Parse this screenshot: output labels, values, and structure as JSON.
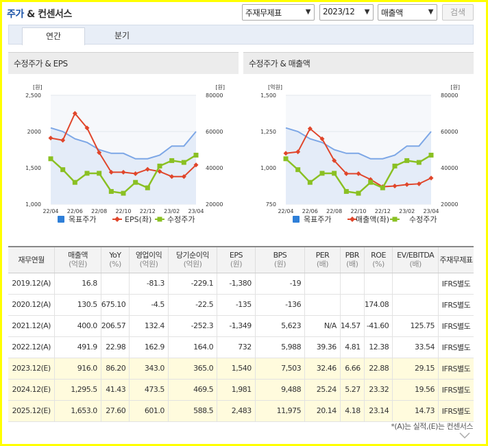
{
  "header": {
    "title_prefix": "주가",
    "title_suffix": " & 컨센서스",
    "select_type": "주재무제표",
    "select_period": "2023/12",
    "select_metric": "매출액",
    "search_label": "검색"
  },
  "tabs": [
    {
      "label": "연간"
    },
    {
      "label": "분기"
    }
  ],
  "panels": {
    "left_title": "수정주가 & EPS",
    "right_title": "수정주가 & 매출액"
  },
  "chart_data": [
    {
      "type": "line",
      "title": "수정주가 & EPS",
      "x": [
        "22/04",
        "22/05",
        "22/06",
        "22/07",
        "22/08",
        "22/09",
        "22/10",
        "22/11",
        "22/12",
        "23/01",
        "23/02",
        "23/03",
        "23/04"
      ],
      "x_ticks": [
        "22/04",
        "22/06",
        "22/08",
        "22/10",
        "22/12",
        "23/02",
        "23/04"
      ],
      "left_axis": {
        "unit": "[원]",
        "ylim": [
          1000,
          2500
        ],
        "ticks": [
          "1,000",
          "1,500",
          "2000",
          "2,500"
        ]
      },
      "right_axis": {
        "unit": "[원]",
        "ylim": [
          20000,
          80000
        ],
        "ticks": [
          "20000",
          "40000",
          "60000",
          "80000"
        ]
      },
      "series": [
        {
          "name": "목표주가",
          "axis": "right",
          "color": "#7da7e6",
          "values": [
            62000,
            60000,
            56000,
            54000,
            50000,
            48000,
            48000,
            45000,
            45000,
            47000,
            52000,
            52000,
            60000
          ]
        },
        {
          "name": "EPS(좌)",
          "axis": "left",
          "color": "#e0462b",
          "values": [
            1910,
            1880,
            2250,
            2050,
            1710,
            1440,
            1440,
            1420,
            1480,
            1450,
            1380,
            1380,
            1540
          ]
        },
        {
          "name": "수정주가",
          "axis": "right",
          "color": "#8ac023",
          "values": [
            45000,
            39000,
            32000,
            37000,
            37000,
            27000,
            26000,
            32000,
            29000,
            41000,
            44000,
            43000,
            47000
          ]
        }
      ],
      "legend": "bottom"
    },
    {
      "type": "line",
      "title": "수정주가 & 매출액",
      "x": [
        "22/04",
        "22/05",
        "22/06",
        "22/07",
        "22/08",
        "22/09",
        "22/10",
        "22/11",
        "22/12",
        "23/01",
        "23/02",
        "23/03",
        "23/04"
      ],
      "x_ticks": [
        "22/04",
        "22/06",
        "22/08",
        "22/10",
        "22/12",
        "23/02",
        "23/04"
      ],
      "left_axis": {
        "unit": "[억원]",
        "ylim": [
          750,
          1500
        ],
        "ticks": [
          "750",
          "1,000",
          "1,250",
          "1,500"
        ]
      },
      "right_axis": {
        "unit": "[원]",
        "ylim": [
          20000,
          80000
        ],
        "ticks": [
          "20000",
          "40000",
          "60000",
          "80000"
        ]
      },
      "series": [
        {
          "name": "목표주가",
          "axis": "right",
          "color": "#7da7e6",
          "values": [
            62000,
            60000,
            56000,
            54000,
            50000,
            48000,
            48000,
            45000,
            45000,
            47000,
            52000,
            52000,
            60000
          ]
        },
        {
          "name": "매출액(좌)",
          "axis": "left",
          "color": "#e0462b",
          "values": [
            1100,
            1110,
            1270,
            1200,
            1050,
            960,
            960,
            920,
            870,
            875,
            885,
            890,
            930
          ]
        },
        {
          "name": "수정주가",
          "axis": "right",
          "color": "#8ac023",
          "values": [
            45000,
            39000,
            32000,
            37000,
            37000,
            27000,
            26000,
            32000,
            29000,
            41000,
            44000,
            43000,
            47000
          ]
        }
      ],
      "legend": "bottom"
    },
    {
      "type": "table",
      "columns": [
        {
          "label": "재무연월",
          "sub": ""
        },
        {
          "label": "매출액",
          "sub": "(억원)"
        },
        {
          "label": "YoY",
          "sub": "(%)"
        },
        {
          "label": "영업이익",
          "sub": "(억원)"
        },
        {
          "label": "당기순이익",
          "sub": "(억원)"
        },
        {
          "label": "EPS",
          "sub": "(원)"
        },
        {
          "label": "BPS",
          "sub": "(원)"
        },
        {
          "label": "PER",
          "sub": "(배)"
        },
        {
          "label": "PBR",
          "sub": "(배)"
        },
        {
          "label": "ROE",
          "sub": "(%)"
        },
        {
          "label": "EV/EBITDA",
          "sub": "(배)"
        },
        {
          "label": "주재무제표",
          "sub": ""
        }
      ],
      "rows": [
        {
          "est": false,
          "cells": [
            "2019.12(A)",
            "16.8",
            "",
            "-81.3",
            "-229.1",
            "-1,380",
            "-19",
            "",
            "",
            "",
            "",
            "IFRS별도"
          ]
        },
        {
          "est": false,
          "cells": [
            "2020.12(A)",
            "130.5",
            "675.10",
            "-4.5",
            "-22.5",
            "-135",
            "-136",
            "",
            "",
            "174.08",
            "",
            "IFRS별도"
          ]
        },
        {
          "est": false,
          "cells": [
            "2021.12(A)",
            "400.0",
            "206.57",
            "132.4",
            "-252.3",
            "-1,349",
            "5,623",
            "N/A",
            "14.57",
            "-41.60",
            "125.75",
            "IFRS별도"
          ]
        },
        {
          "est": false,
          "cells": [
            "2022.12(A)",
            "491.9",
            "22.98",
            "162.9",
            "164.0",
            "732",
            "5,988",
            "39.36",
            "4.81",
            "12.38",
            "33.54",
            "IFRS별도"
          ]
        },
        {
          "est": true,
          "cells": [
            "2023.12(E)",
            "916.0",
            "86.20",
            "343.0",
            "365.0",
            "1,540",
            "7,503",
            "32.46",
            "6.66",
            "22.88",
            "29.15",
            "IFRS별도"
          ]
        },
        {
          "est": true,
          "cells": [
            "2024.12(E)",
            "1,295.5",
            "41.43",
            "473.5",
            "469.5",
            "1,981",
            "9,488",
            "25.24",
            "5.27",
            "23.32",
            "19.56",
            "IFRS별도"
          ]
        },
        {
          "est": true,
          "cells": [
            "2025.12(E)",
            "1,653.0",
            "27.60",
            "601.0",
            "588.5",
            "2,483",
            "11,975",
            "20.14",
            "4.18",
            "23.14",
            "14.73",
            "IFRS별도"
          ]
        }
      ]
    }
  ],
  "footnote": "*(A)는 실적,(E)는 컨센서스"
}
